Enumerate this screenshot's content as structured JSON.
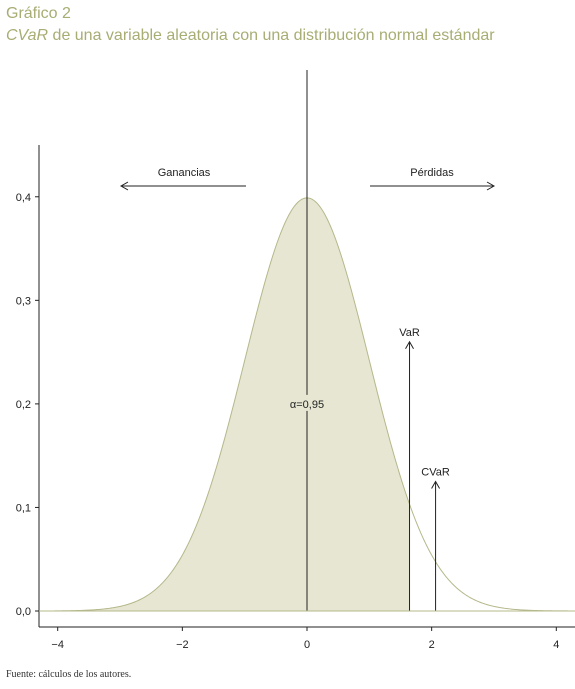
{
  "figure": {
    "label": "Gráfico 2",
    "title_italic": "CVaR",
    "title_rest": " de una variable aleatoria con una distribución normal estándar",
    "source": "Fuente: cálculos de los autores."
  },
  "colors": {
    "title": "#a8ad73",
    "fill": "#e6e6d2",
    "curve": "#b5b88a",
    "ink": "#222222"
  },
  "chart_data": {
    "type": "area",
    "distribution": "normal",
    "mean": 0,
    "sd": 1,
    "xlim": [
      -4.3,
      4.3
    ],
    "ylim": [
      0,
      0.45
    ],
    "xticks": [
      -4,
      -2,
      0,
      2,
      4
    ],
    "xtick_labels": [
      "−4",
      "−2",
      "0",
      "2",
      "4"
    ],
    "yticks": [
      0,
      0.1,
      0.2,
      0.3,
      0.4
    ],
    "ytick_labels": [
      "0,0",
      "0,1",
      "0,2",
      "0,3",
      "0,4"
    ],
    "shaded_upper_x": 1.645,
    "annotations": {
      "gains": "Ganancias",
      "losses": "Pérdidas",
      "alpha": "α=0,95",
      "var": "VaR",
      "var_x": 1.645,
      "var_top_y": 0.26,
      "cvar": "CVaR",
      "cvar_x": 2.063,
      "cvar_top_y": 0.125
    }
  }
}
